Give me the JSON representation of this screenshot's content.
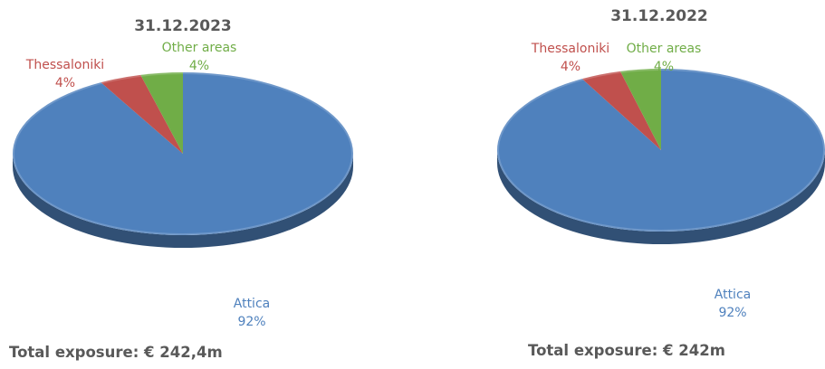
{
  "chart_data": [
    {
      "type": "pie",
      "title": "31.12.2023",
      "categories": [
        "Attica",
        "Thessaloniki",
        "Other areas"
      ],
      "values": [
        92,
        4,
        4
      ],
      "value_labels": [
        "92%",
        "4%",
        "4%"
      ],
      "colors": [
        "#4f81bd",
        "#c0504d",
        "#70ad47"
      ],
      "footer": "Total exposure: € 242,4m"
    },
    {
      "type": "pie",
      "title": "31.12.2022",
      "categories": [
        "Attica",
        "Thessaloniki",
        "Other areas"
      ],
      "values": [
        92,
        4,
        4
      ],
      "value_labels": [
        "92%",
        "4%",
        "4%"
      ],
      "colors": [
        "#4f81bd",
        "#c0504d",
        "#70ad47"
      ],
      "footer": "Total exposure: € 242m"
    }
  ]
}
